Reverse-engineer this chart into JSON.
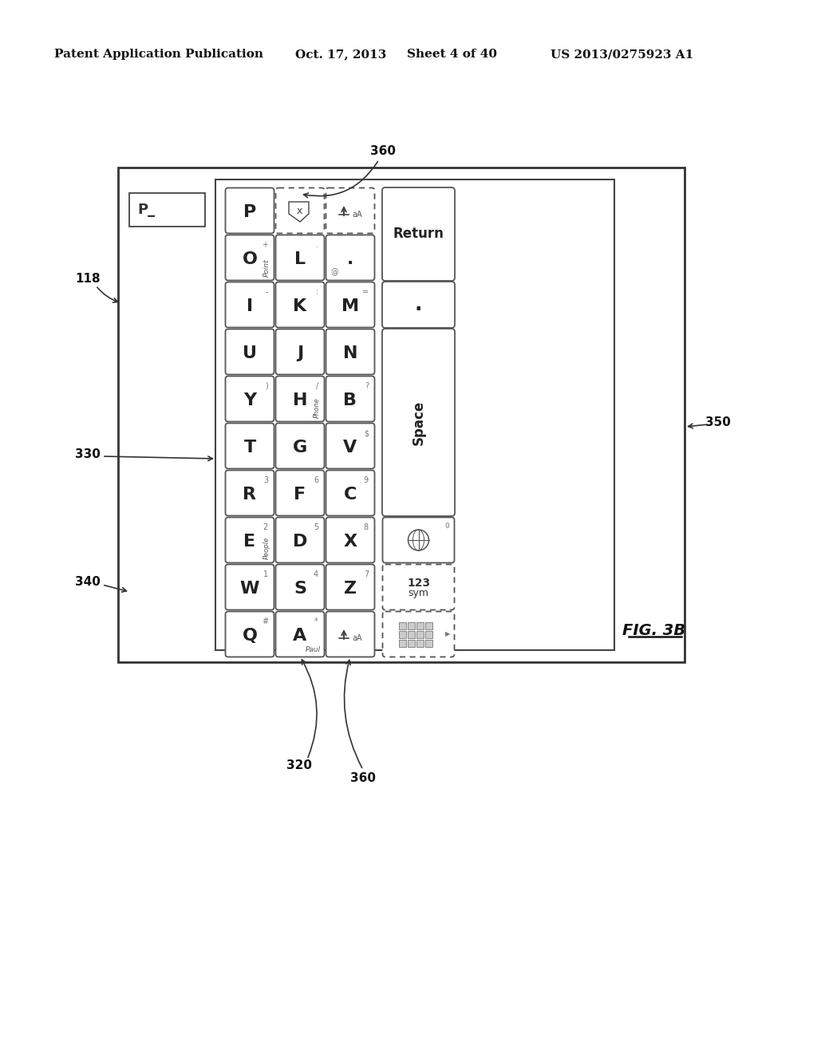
{
  "bg_color": "#ffffff",
  "header_text": "Patent Application Publication",
  "header_date": "Oct. 17, 2013",
  "header_sheet": "Sheet 4 of 40",
  "header_patent": "US 2013/0275923 A1",
  "fig_label": "FIG. 3B"
}
